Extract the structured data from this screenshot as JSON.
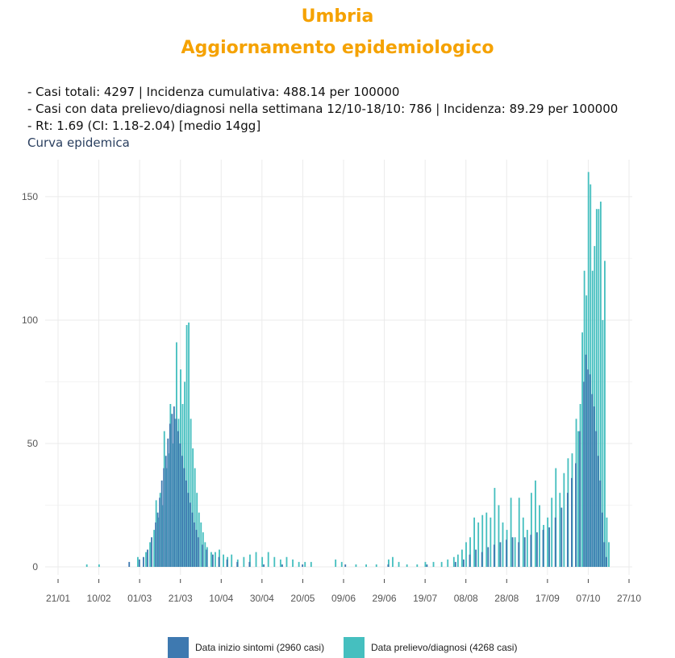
{
  "header": {
    "region": "Umbria",
    "title": "Aggiornamento epidemiologico"
  },
  "stats": [
    "- Casi totali: 4297 | Incidenza cumulativa: 488.14 per 100000",
    "- Casi con data prelievo/diagnosi nella settimana 12/10-18/10: 786 | Incidenza: 89.29 per 100000",
    "- Rt: 1.69 (CI: 1.18-2.04) [medio 14gg]"
  ],
  "subtitle": "Curva epidemica",
  "colors": {
    "title": "#F5A200",
    "series_onset": "#3E79B0",
    "series_diagnosis": "#45BFBF",
    "grid": "#EBEBEB"
  },
  "legend": [
    {
      "label": "Data inizio sintomi (2960 casi)",
      "color": "#3E79B0"
    },
    {
      "label": "Data prelievo/diagnosi (4268 casi)",
      "color": "#45BFBF"
    }
  ],
  "chart_data": {
    "type": "bar",
    "title": "",
    "xlabel": "",
    "ylabel": "",
    "ylim": [
      0,
      165
    ],
    "yticks": [
      0,
      50,
      100,
      150
    ],
    "x_start": "2020-01-21",
    "x_end": "2020-10-27",
    "xticks": [
      "21/01",
      "10/02",
      "01/03",
      "21/03",
      "10/04",
      "30/04",
      "20/05",
      "09/06",
      "29/06",
      "19/07",
      "08/08",
      "28/08",
      "17/09",
      "07/10",
      "27/10"
    ],
    "grid": true,
    "legend_position": "bottom",
    "series": [
      {
        "name": "Data inizio sintomi (2960 casi)",
        "points": [
          [
            "2020-02-25",
            2
          ],
          [
            "2020-03-01",
            3
          ],
          [
            "2020-03-03",
            4
          ],
          [
            "2020-03-05",
            7
          ],
          [
            "2020-03-07",
            12
          ],
          [
            "2020-03-09",
            18
          ],
          [
            "2020-03-10",
            22
          ],
          [
            "2020-03-11",
            28
          ],
          [
            "2020-03-12",
            35
          ],
          [
            "2020-03-13",
            40
          ],
          [
            "2020-03-14",
            45
          ],
          [
            "2020-03-15",
            52
          ],
          [
            "2020-03-16",
            58
          ],
          [
            "2020-03-17",
            62
          ],
          [
            "2020-03-18",
            65
          ],
          [
            "2020-03-19",
            60
          ],
          [
            "2020-03-20",
            55
          ],
          [
            "2020-03-21",
            50
          ],
          [
            "2020-03-22",
            45
          ],
          [
            "2020-03-23",
            40
          ],
          [
            "2020-03-24",
            35
          ],
          [
            "2020-03-25",
            30
          ],
          [
            "2020-03-26",
            26
          ],
          [
            "2020-03-27",
            22
          ],
          [
            "2020-03-28",
            18
          ],
          [
            "2020-03-29",
            15
          ],
          [
            "2020-03-30",
            12
          ],
          [
            "2020-04-01",
            9
          ],
          [
            "2020-04-03",
            7
          ],
          [
            "2020-04-06",
            5
          ],
          [
            "2020-04-09",
            4
          ],
          [
            "2020-04-13",
            3
          ],
          [
            "2020-04-18",
            2
          ],
          [
            "2020-04-24",
            2
          ],
          [
            "2020-05-01",
            1
          ],
          [
            "2020-05-10",
            1
          ],
          [
            "2020-05-20",
            1
          ],
          [
            "2020-06-10",
            1
          ],
          [
            "2020-07-01",
            1
          ],
          [
            "2020-07-20",
            1
          ],
          [
            "2020-08-03",
            2
          ],
          [
            "2020-08-07",
            3
          ],
          [
            "2020-08-10",
            5
          ],
          [
            "2020-08-13",
            7
          ],
          [
            "2020-08-16",
            6
          ],
          [
            "2020-08-19",
            8
          ],
          [
            "2020-08-22",
            9
          ],
          [
            "2020-08-25",
            10
          ],
          [
            "2020-08-28",
            11
          ],
          [
            "2020-08-31",
            12
          ],
          [
            "2020-09-03",
            10
          ],
          [
            "2020-09-06",
            12
          ],
          [
            "2020-09-09",
            13
          ],
          [
            "2020-09-12",
            14
          ],
          [
            "2020-09-15",
            15
          ],
          [
            "2020-09-18",
            16
          ],
          [
            "2020-09-21",
            20
          ],
          [
            "2020-09-24",
            24
          ],
          [
            "2020-09-27",
            30
          ],
          [
            "2020-09-29",
            36
          ],
          [
            "2020-10-01",
            42
          ],
          [
            "2020-10-03",
            55
          ],
          [
            "2020-10-05",
            75
          ],
          [
            "2020-10-06",
            86
          ],
          [
            "2020-10-07",
            80
          ],
          [
            "2020-10-08",
            78
          ],
          [
            "2020-10-09",
            70
          ],
          [
            "2020-10-10",
            65
          ],
          [
            "2020-10-11",
            55
          ],
          [
            "2020-10-12",
            45
          ],
          [
            "2020-10-13",
            35
          ],
          [
            "2020-10-14",
            22
          ],
          [
            "2020-10-15",
            10
          ],
          [
            "2020-10-16",
            4
          ]
        ]
      },
      {
        "name": "Data prelievo/diagnosi (4268 casi)",
        "points": [
          [
            "2020-02-04",
            1
          ],
          [
            "2020-02-10",
            1
          ],
          [
            "2020-02-29",
            4
          ],
          [
            "2020-03-04",
            6
          ],
          [
            "2020-03-06",
            10
          ],
          [
            "2020-03-08",
            15
          ],
          [
            "2020-03-09",
            27
          ],
          [
            "2020-03-10",
            20
          ],
          [
            "2020-03-11",
            30
          ],
          [
            "2020-03-12",
            25
          ],
          [
            "2020-03-13",
            55
          ],
          [
            "2020-03-14",
            40
          ],
          [
            "2020-03-15",
            46
          ],
          [
            "2020-03-16",
            66
          ],
          [
            "2020-03-17",
            50
          ],
          [
            "2020-03-18",
            60
          ],
          [
            "2020-03-19",
            91
          ],
          [
            "2020-03-20",
            60
          ],
          [
            "2020-03-21",
            80
          ],
          [
            "2020-03-22",
            66
          ],
          [
            "2020-03-23",
            75
          ],
          [
            "2020-03-24",
            98
          ],
          [
            "2020-03-25",
            99
          ],
          [
            "2020-03-26",
            60
          ],
          [
            "2020-03-27",
            48
          ],
          [
            "2020-03-28",
            40
          ],
          [
            "2020-03-29",
            30
          ],
          [
            "2020-03-30",
            22
          ],
          [
            "2020-03-31",
            18
          ],
          [
            "2020-04-01",
            14
          ],
          [
            "2020-04-02",
            10
          ],
          [
            "2020-04-03",
            8
          ],
          [
            "2020-04-05",
            6
          ],
          [
            "2020-04-07",
            6
          ],
          [
            "2020-04-09",
            7
          ],
          [
            "2020-04-11",
            5
          ],
          [
            "2020-04-13",
            4
          ],
          [
            "2020-04-15",
            5
          ],
          [
            "2020-04-18",
            3
          ],
          [
            "2020-04-21",
            4
          ],
          [
            "2020-04-24",
            5
          ],
          [
            "2020-04-27",
            6
          ],
          [
            "2020-04-30",
            4
          ],
          [
            "2020-05-03",
            6
          ],
          [
            "2020-05-06",
            4
          ],
          [
            "2020-05-09",
            3
          ],
          [
            "2020-05-12",
            4
          ],
          [
            "2020-05-15",
            3
          ],
          [
            "2020-05-18",
            2
          ],
          [
            "2020-05-21",
            2
          ],
          [
            "2020-05-24",
            2
          ],
          [
            "2020-06-05",
            3
          ],
          [
            "2020-06-08",
            2
          ],
          [
            "2020-06-15",
            1
          ],
          [
            "2020-06-20",
            1
          ],
          [
            "2020-06-25",
            1
          ],
          [
            "2020-07-01",
            3
          ],
          [
            "2020-07-03",
            4
          ],
          [
            "2020-07-06",
            2
          ],
          [
            "2020-07-10",
            1
          ],
          [
            "2020-07-15",
            1
          ],
          [
            "2020-07-19",
            2
          ],
          [
            "2020-07-23",
            2
          ],
          [
            "2020-07-27",
            2
          ],
          [
            "2020-07-30",
            3
          ],
          [
            "2020-08-02",
            4
          ],
          [
            "2020-08-04",
            5
          ],
          [
            "2020-08-06",
            7
          ],
          [
            "2020-08-08",
            10
          ],
          [
            "2020-08-10",
            12
          ],
          [
            "2020-08-12",
            20
          ],
          [
            "2020-08-14",
            18
          ],
          [
            "2020-08-16",
            21
          ],
          [
            "2020-08-18",
            22
          ],
          [
            "2020-08-20",
            20
          ],
          [
            "2020-08-22",
            32
          ],
          [
            "2020-08-24",
            25
          ],
          [
            "2020-08-26",
            18
          ],
          [
            "2020-08-28",
            15
          ],
          [
            "2020-08-30",
            28
          ],
          [
            "2020-09-01",
            12
          ],
          [
            "2020-09-03",
            28
          ],
          [
            "2020-09-05",
            20
          ],
          [
            "2020-09-07",
            15
          ],
          [
            "2020-09-09",
            30
          ],
          [
            "2020-09-11",
            35
          ],
          [
            "2020-09-13",
            25
          ],
          [
            "2020-09-15",
            17
          ],
          [
            "2020-09-17",
            20
          ],
          [
            "2020-09-19",
            28
          ],
          [
            "2020-09-21",
            40
          ],
          [
            "2020-09-23",
            30
          ],
          [
            "2020-09-25",
            38
          ],
          [
            "2020-09-27",
            44
          ],
          [
            "2020-09-29",
            46
          ],
          [
            "2020-10-01",
            60
          ],
          [
            "2020-10-02",
            55
          ],
          [
            "2020-10-03",
            66
          ],
          [
            "2020-10-04",
            95
          ],
          [
            "2020-10-05",
            120
          ],
          [
            "2020-10-06",
            110
          ],
          [
            "2020-10-07",
            160
          ],
          [
            "2020-10-08",
            155
          ],
          [
            "2020-10-09",
            120
          ],
          [
            "2020-10-10",
            130
          ],
          [
            "2020-10-11",
            145
          ],
          [
            "2020-10-12",
            145
          ],
          [
            "2020-10-13",
            148
          ],
          [
            "2020-10-14",
            100
          ],
          [
            "2020-10-15",
            124
          ],
          [
            "2020-10-16",
            20
          ],
          [
            "2020-10-17",
            10
          ]
        ]
      }
    ]
  }
}
